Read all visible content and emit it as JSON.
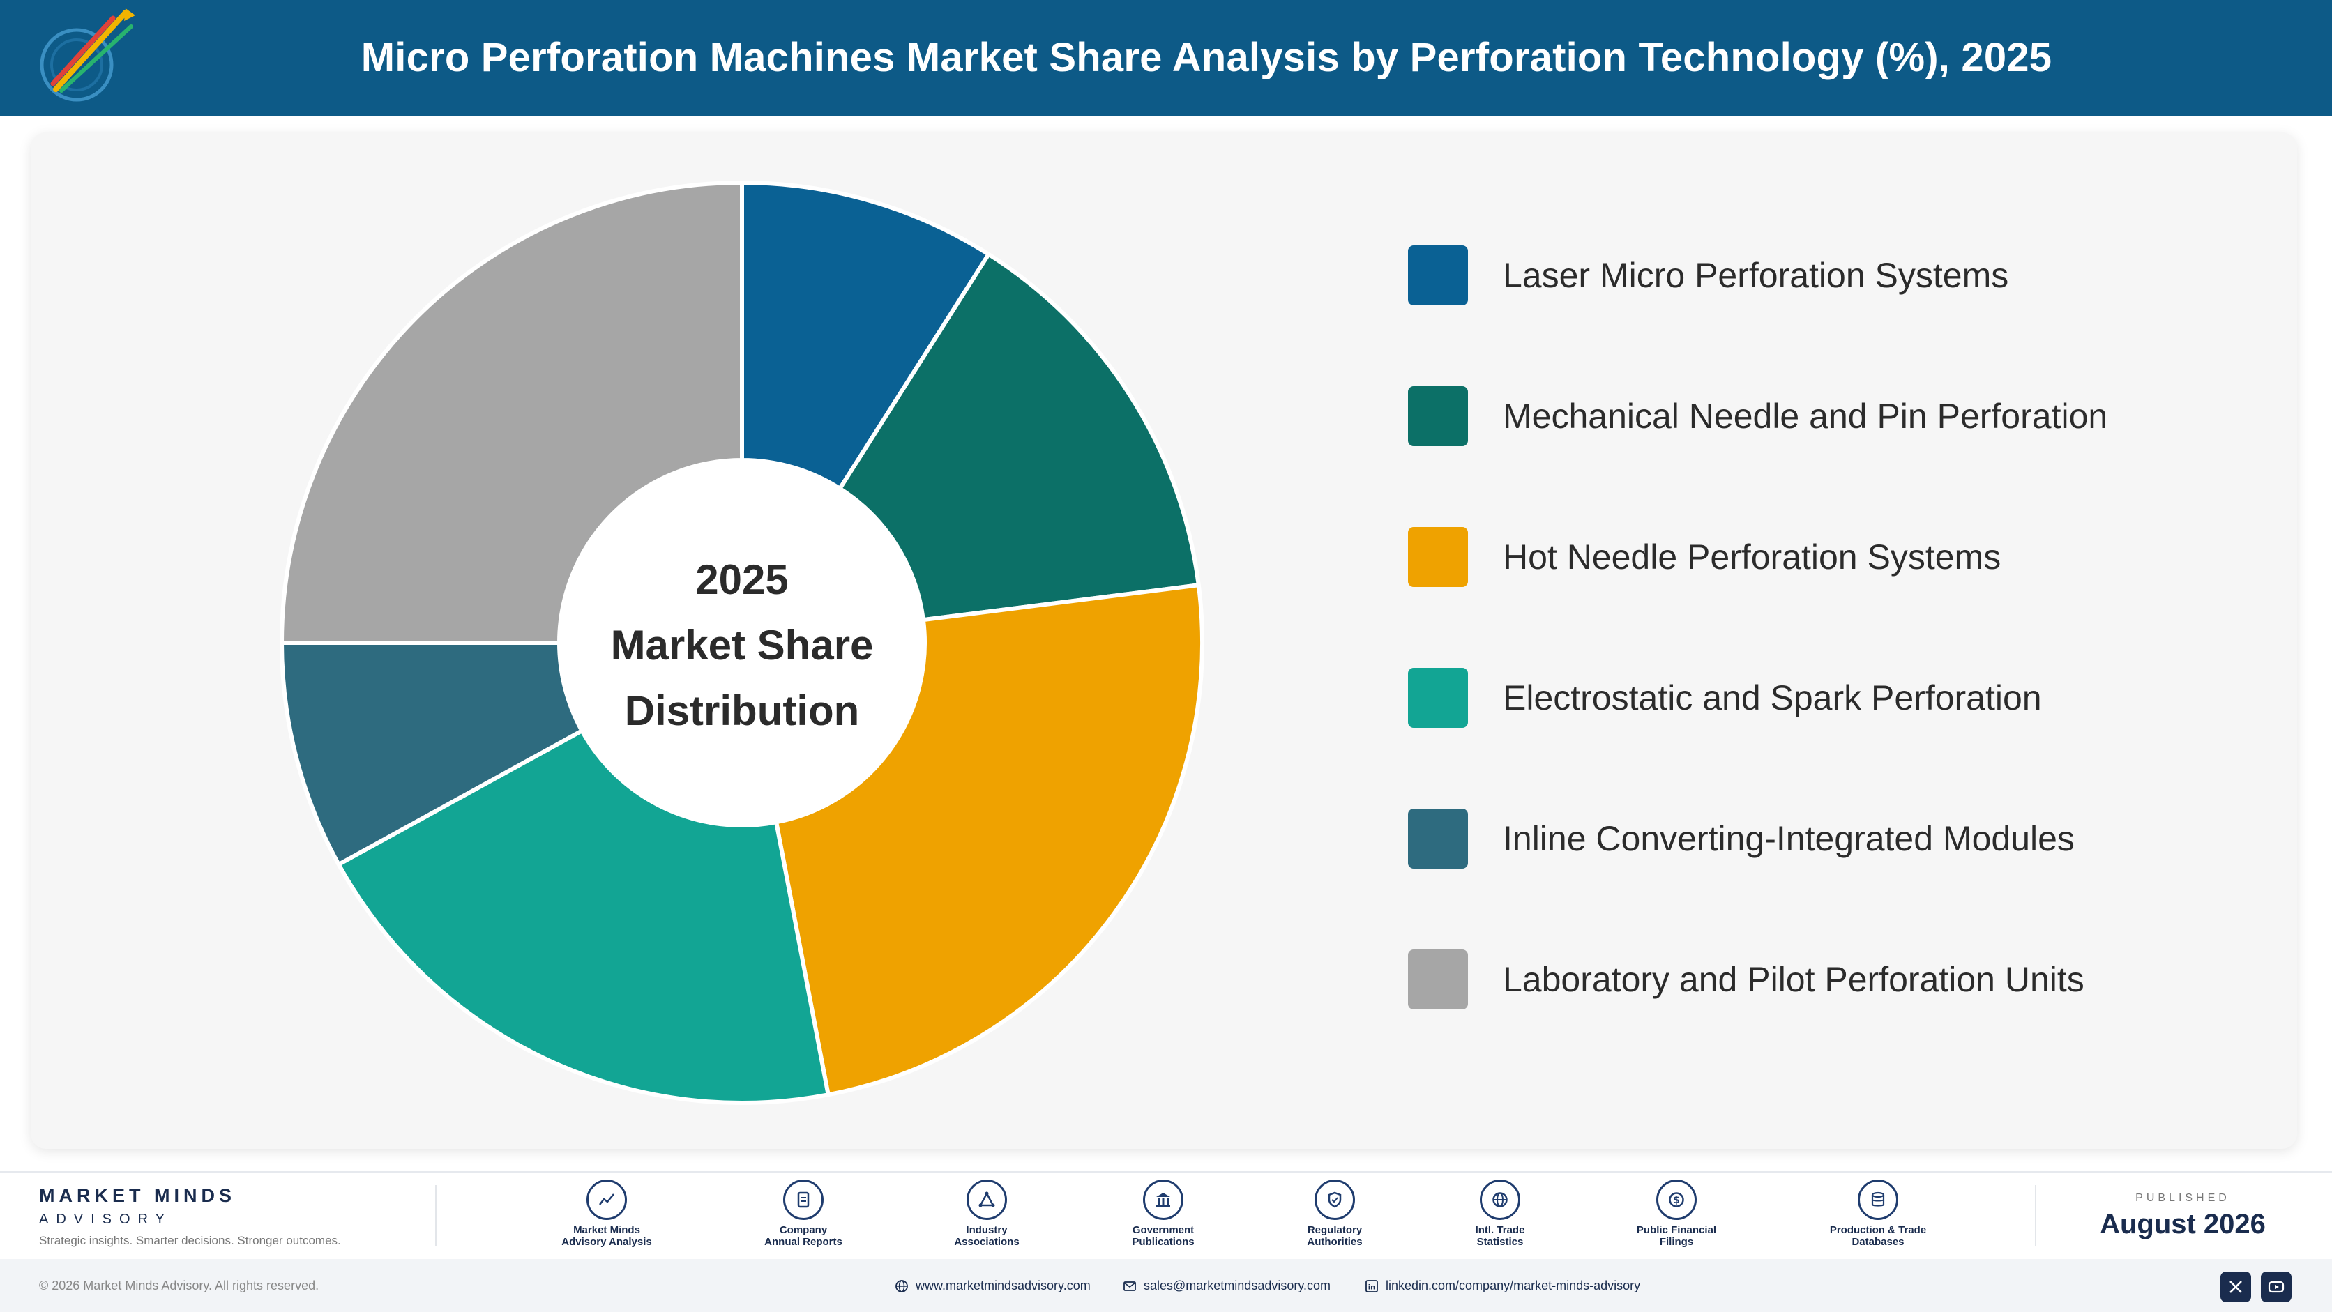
{
  "header": {
    "title": "Micro Perforation Machines Market Share Analysis by Perforation Technology (%), 2025"
  },
  "chart_data": {
    "type": "pie",
    "title": "Micro Perforation Machines Market Share Analysis by Perforation Technology (%), 2025",
    "center_label": [
      "2025",
      "Market Share",
      "Distribution"
    ],
    "legend_position": "right",
    "categories": [
      "Laser Micro Perforation Systems",
      "Mechanical Needle and Pin Perforation",
      "Hot Needle Perforation Systems",
      "Electrostatic and Spark Perforation",
      "Inline Converting-Integrated Modules",
      "Laboratory and Pilot Perforation Units"
    ],
    "values": [
      9,
      14,
      24,
      20,
      8,
      25
    ],
    "colors": [
      "#0a6194",
      "#0c7067",
      "#efa200",
      "#12a594",
      "#2e6b7f",
      "#a6a6a6"
    ]
  },
  "footer": {
    "brand_name": "MARKET MINDS",
    "brand_sub": "ADVISORY",
    "tagline": "Strategic insights. Smarter decisions. Stronger outcomes.",
    "sources": [
      {
        "line1": "Market Minds",
        "line2": "Advisory Analysis",
        "icon": "chart-line-icon"
      },
      {
        "line1": "Company",
        "line2": "Annual Reports",
        "icon": "document-icon"
      },
      {
        "line1": "Industry",
        "line2": "Associations",
        "icon": "network-icon"
      },
      {
        "line1": "Government",
        "line2": "Publications",
        "icon": "building-icon"
      },
      {
        "line1": "Regulatory",
        "line2": "Authorities",
        "icon": "shield-icon"
      },
      {
        "line1": "Intl. Trade",
        "line2": "Statistics",
        "icon": "globe-icon"
      },
      {
        "line1": "Public Financial",
        "line2": "Filings",
        "icon": "dollar-icon"
      },
      {
        "line1": "Production & Trade",
        "line2": "Databases",
        "icon": "database-icon"
      }
    ],
    "published_label": "PUBLISHED",
    "published_date": "August 2026"
  },
  "bottom_bar": {
    "copyright": "© 2026 Market Minds Advisory. All rights reserved.",
    "website": "www.marketmindsadvisory.com",
    "email": "sales@marketmindsadvisory.com",
    "linkedin": "linkedin.com/company/market-minds-advisory"
  }
}
